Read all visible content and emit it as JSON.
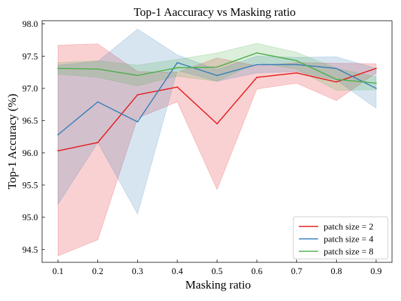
{
  "chart_data": {
    "type": "line",
    "title": "Top-1 Aaccuracy vs Masking ratio",
    "xlabel": "Masking ratio",
    "ylabel": "Top-1 Accuracy (%)",
    "x": [
      0.1,
      0.2,
      0.3,
      0.4,
      0.5,
      0.6,
      0.7,
      0.8,
      0.9
    ],
    "x_ticks": [
      "0.1",
      "0.2",
      "0.3",
      "0.4",
      "0.5",
      "0.6",
      "0.7",
      "0.8",
      "0.9"
    ],
    "y_ticks": [
      "94.5",
      "95.0",
      "95.5",
      "96.0",
      "96.5",
      "97.0",
      "97.5",
      "98.0"
    ],
    "xlim": [
      0.06,
      0.94
    ],
    "ylim": [
      94.3,
      98.05
    ],
    "grid": false,
    "legend_position": "bottom-right",
    "series": [
      {
        "name": "patch size = 2",
        "color": "#e41a1c",
        "values": [
          96.03,
          96.16,
          96.9,
          97.02,
          96.45,
          97.17,
          97.24,
          97.1,
          97.31
        ],
        "upper": [
          97.67,
          97.69,
          97.26,
          97.25,
          97.47,
          97.35,
          97.4,
          97.39,
          97.38
        ],
        "lower": [
          94.4,
          94.65,
          96.54,
          96.79,
          95.43,
          96.99,
          97.08,
          96.81,
          97.24
        ]
      },
      {
        "name": "patch size = 4",
        "color": "#377eb8",
        "values": [
          96.28,
          96.79,
          96.48,
          97.4,
          97.2,
          97.37,
          97.37,
          97.31,
          97.0
        ],
        "upper": [
          97.36,
          97.42,
          97.92,
          97.52,
          97.29,
          97.5,
          97.48,
          97.49,
          97.31
        ],
        "lower": [
          95.2,
          96.16,
          95.05,
          97.28,
          97.11,
          97.24,
          97.26,
          97.13,
          96.69
        ]
      },
      {
        "name": "patch size = 8",
        "color": "#4daf4a",
        "values": [
          97.31,
          97.3,
          97.2,
          97.32,
          97.33,
          97.55,
          97.43,
          97.14,
          97.08
        ],
        "upper": [
          97.4,
          97.43,
          97.36,
          97.45,
          97.55,
          97.7,
          97.56,
          97.31,
          97.18
        ],
        "lower": [
          97.22,
          97.17,
          97.04,
          97.19,
          97.11,
          97.4,
          97.3,
          96.97,
          96.98
        ]
      }
    ]
  }
}
